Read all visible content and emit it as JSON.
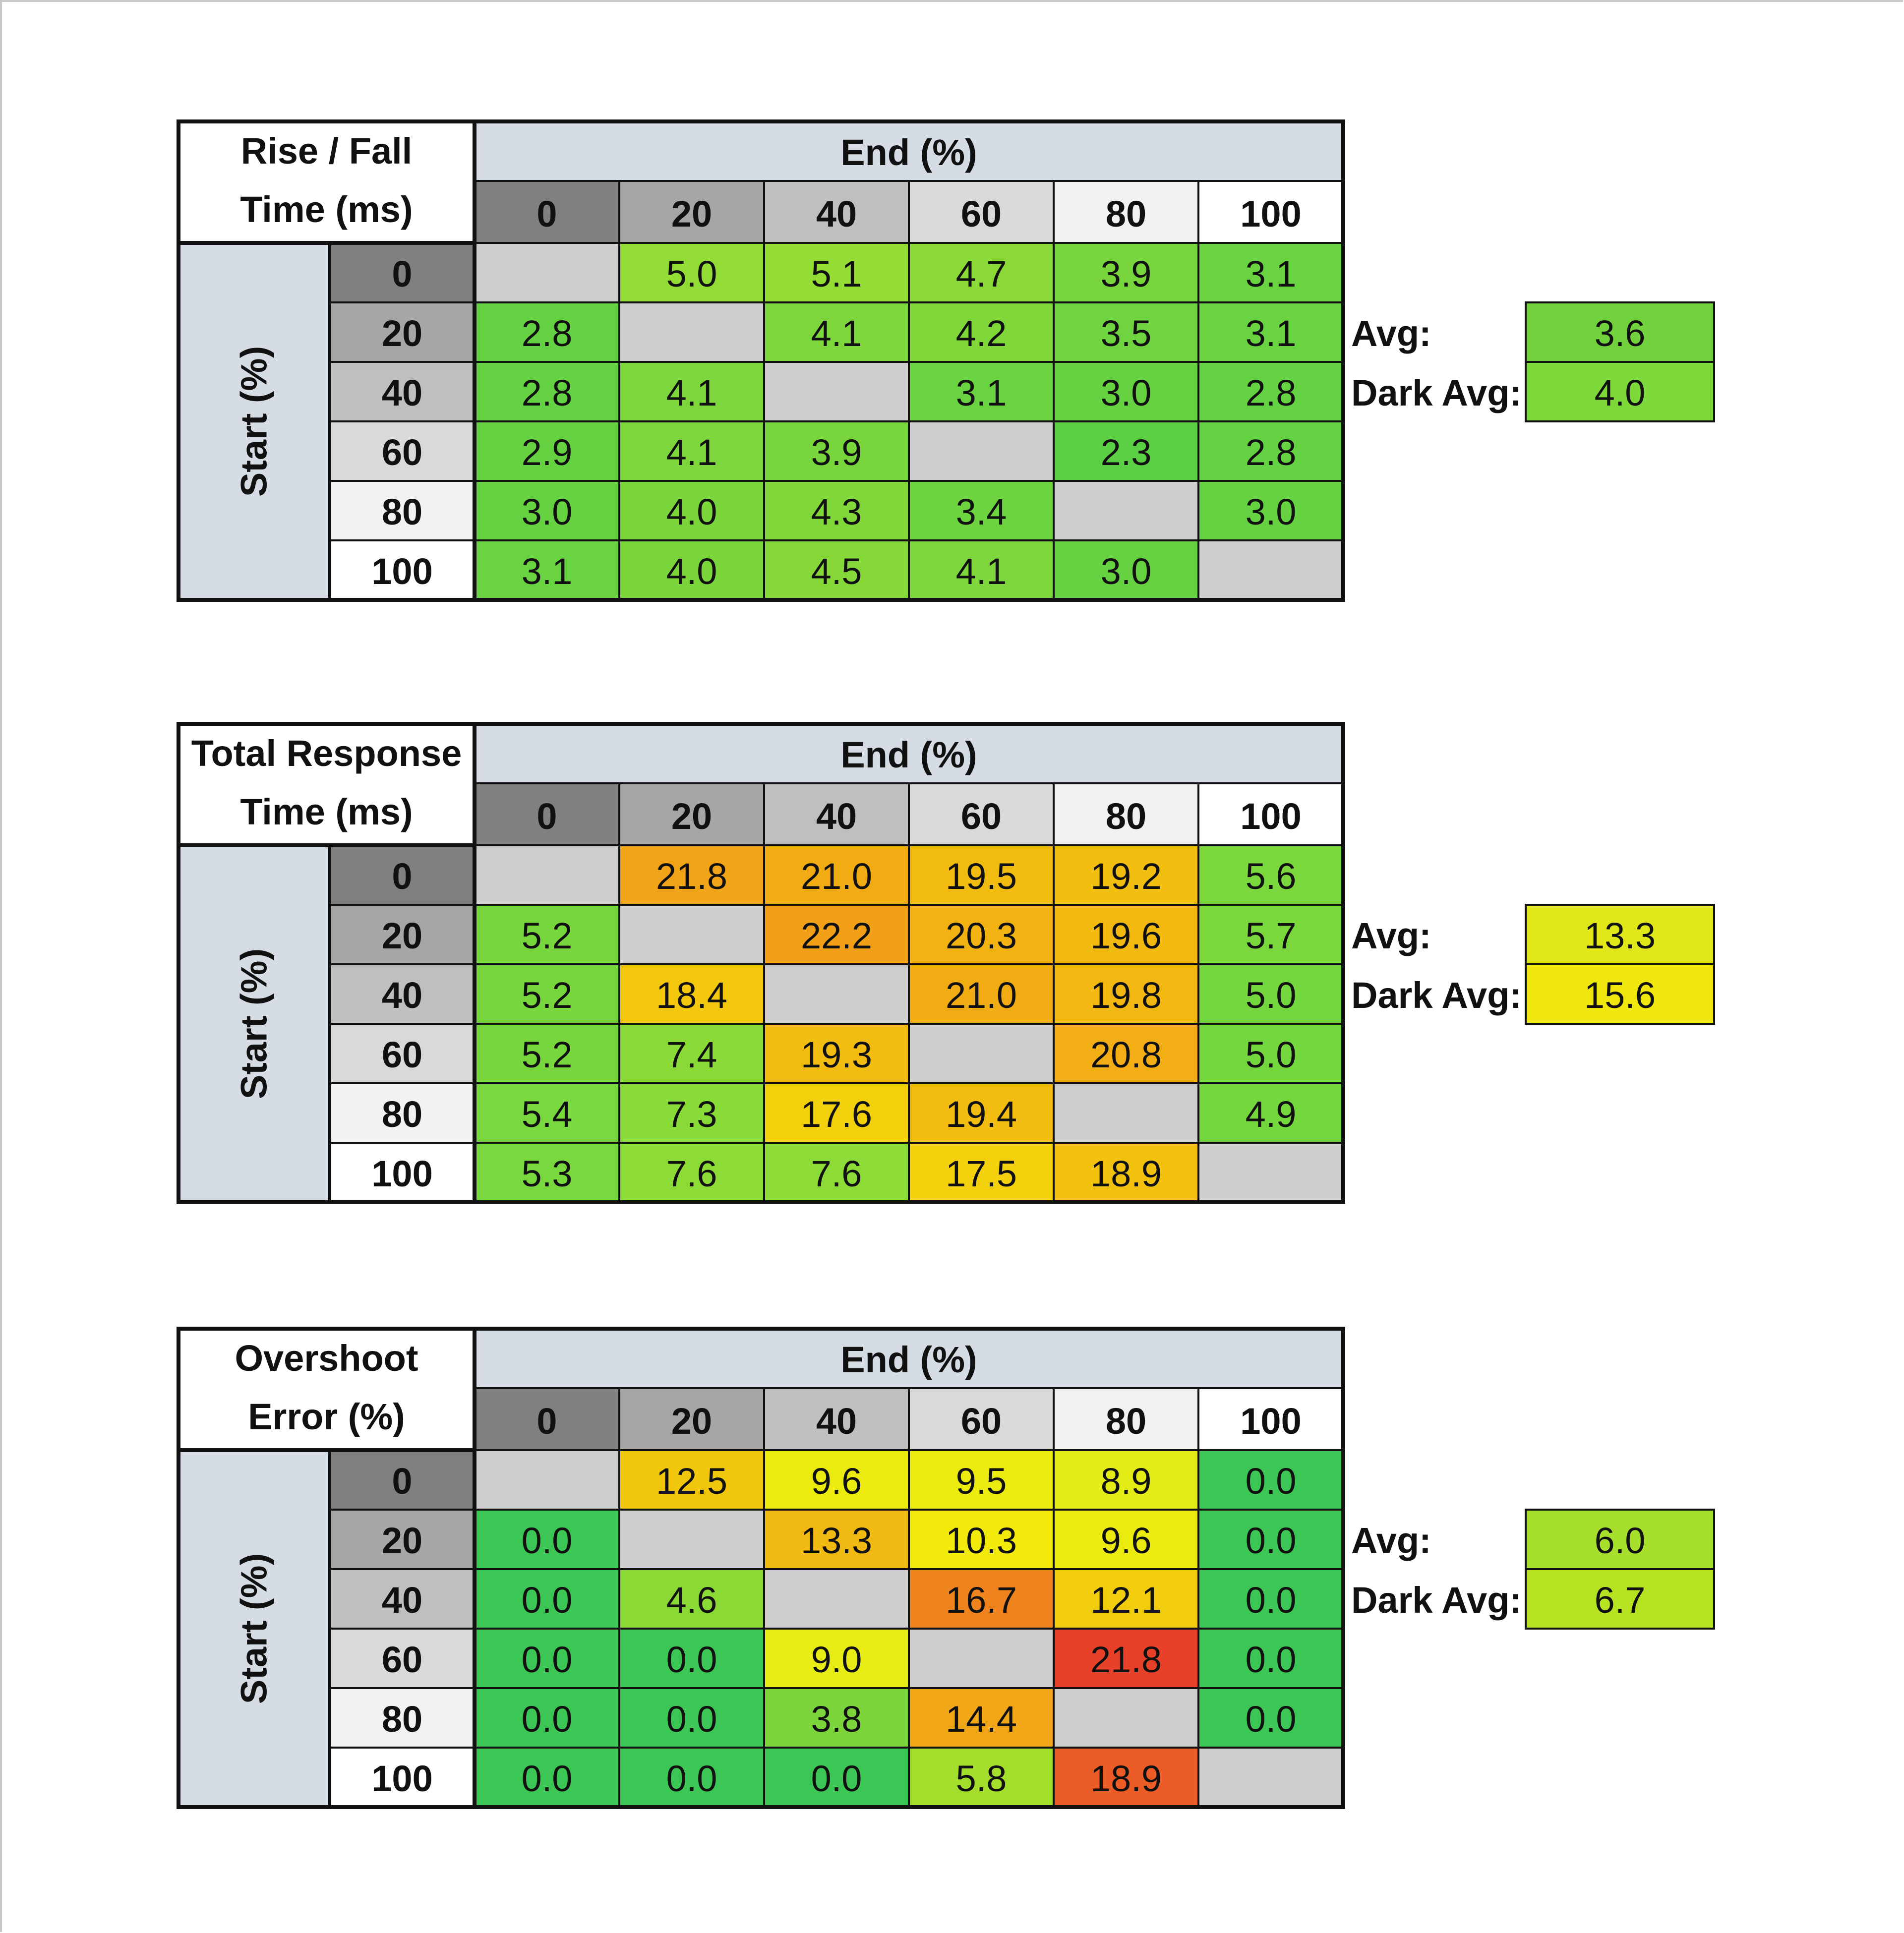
{
  "chart_data": [
    {
      "type": "heatmap",
      "title_lines": [
        "Rise / Fall",
        "Time (ms)"
      ],
      "col_header": "End (%)",
      "row_header": "Start (%)",
      "levels": [
        "0",
        "20",
        "40",
        "60",
        "80",
        "100"
      ],
      "values": [
        [
          null,
          5.0,
          5.1,
          4.7,
          3.9,
          3.1
        ],
        [
          2.8,
          null,
          4.1,
          4.2,
          3.5,
          3.1
        ],
        [
          2.8,
          4.1,
          null,
          3.1,
          3.0,
          2.8
        ],
        [
          2.9,
          4.1,
          3.9,
          null,
          2.3,
          2.8
        ],
        [
          3.0,
          4.0,
          4.3,
          3.4,
          null,
          3.0
        ],
        [
          3.1,
          4.0,
          4.5,
          4.1,
          3.0,
          null
        ]
      ],
      "summary": [
        {
          "label": "Avg:",
          "value": "3.6",
          "color": "#72d23e"
        },
        {
          "label": "Dark Avg:",
          "value": "4.0",
          "color": "#7dd83a"
        }
      ],
      "metric": "rise_fall"
    },
    {
      "type": "heatmap",
      "title_lines": [
        "Total Response",
        "Time (ms)"
      ],
      "col_header": "End (%)",
      "row_header": "Start (%)",
      "levels": [
        "0",
        "20",
        "40",
        "60",
        "80",
        "100"
      ],
      "values": [
        [
          null,
          21.8,
          21.0,
          19.5,
          19.2,
          5.6
        ],
        [
          5.2,
          null,
          22.2,
          20.3,
          19.6,
          5.7
        ],
        [
          5.2,
          18.4,
          null,
          21.0,
          19.8,
          5.0
        ],
        [
          5.2,
          7.4,
          19.3,
          null,
          20.8,
          5.0
        ],
        [
          5.4,
          7.3,
          17.6,
          19.4,
          null,
          4.9
        ],
        [
          5.3,
          7.6,
          7.6,
          17.5,
          18.9,
          null
        ]
      ],
      "summary": [
        {
          "label": "Avg:",
          "value": "13.3",
          "color": "#e1e81a"
        },
        {
          "label": "Dark Avg:",
          "value": "15.6",
          "color": "#efe70e"
        }
      ],
      "metric": "total"
    },
    {
      "type": "heatmap",
      "title_lines": [
        "Overshoot",
        "Error (%)"
      ],
      "col_header": "End (%)",
      "row_header": "Start (%)",
      "levels": [
        "0",
        "20",
        "40",
        "60",
        "80",
        "100"
      ],
      "values": [
        [
          null,
          12.5,
          9.6,
          9.5,
          8.9,
          0.0
        ],
        [
          0.0,
          null,
          13.3,
          10.3,
          9.6,
          0.0
        ],
        [
          0.0,
          4.6,
          null,
          16.7,
          12.1,
          0.0
        ],
        [
          0.0,
          0.0,
          9.0,
          null,
          21.8,
          0.0
        ],
        [
          0.0,
          0.0,
          3.8,
          14.4,
          null,
          0.0
        ],
        [
          0.0,
          0.0,
          0.0,
          5.8,
          18.9,
          null
        ]
      ],
      "summary": [
        {
          "label": "Avg:",
          "value": "6.0",
          "color": "#a6e02c"
        },
        {
          "label": "Dark Avg:",
          "value": "6.7",
          "color": "#b5e322"
        }
      ],
      "metric": "overshoot"
    }
  ],
  "colors": {
    "header_band": "#d6dce4",
    "diagonal_cell": "#d0cece",
    "level_shades": [
      "#808080",
      "#a6a6a6",
      "#bfbfbf",
      "#d9d9d9",
      "#f2f2f2",
      "#ffffff"
    ]
  }
}
